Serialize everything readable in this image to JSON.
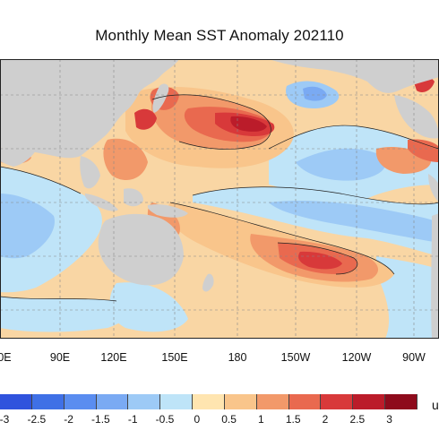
{
  "title": "Monthly Mean SST Anomaly 202110",
  "longitude_labels": [
    "0E",
    "90E",
    "120E",
    "150E",
    "180",
    "150W",
    "120W",
    "90W"
  ],
  "colorbar": {
    "tick_labels": [
      "-3",
      "-2.5",
      "-2",
      "-1.5",
      "-1",
      "-0.5",
      "0",
      "0.5",
      "1",
      "1.5",
      "2",
      "2.5",
      "3"
    ],
    "colors": [
      "#2f53dd",
      "#3f70e6",
      "#5a8df0",
      "#7aaaf3",
      "#9dcaf6",
      "#bee4f8",
      "#ffe5b0",
      "#f9c58b",
      "#f2996a",
      "#e9694f",
      "#d8393a",
      "#bb1c2a",
      "#8e0b1c"
    ],
    "unit_label": "u"
  },
  "palette": {
    "land": "#cfcfcf",
    "neutral_warm": "#f9d6a4",
    "neutral_cool": "#cdeaf7"
  }
}
